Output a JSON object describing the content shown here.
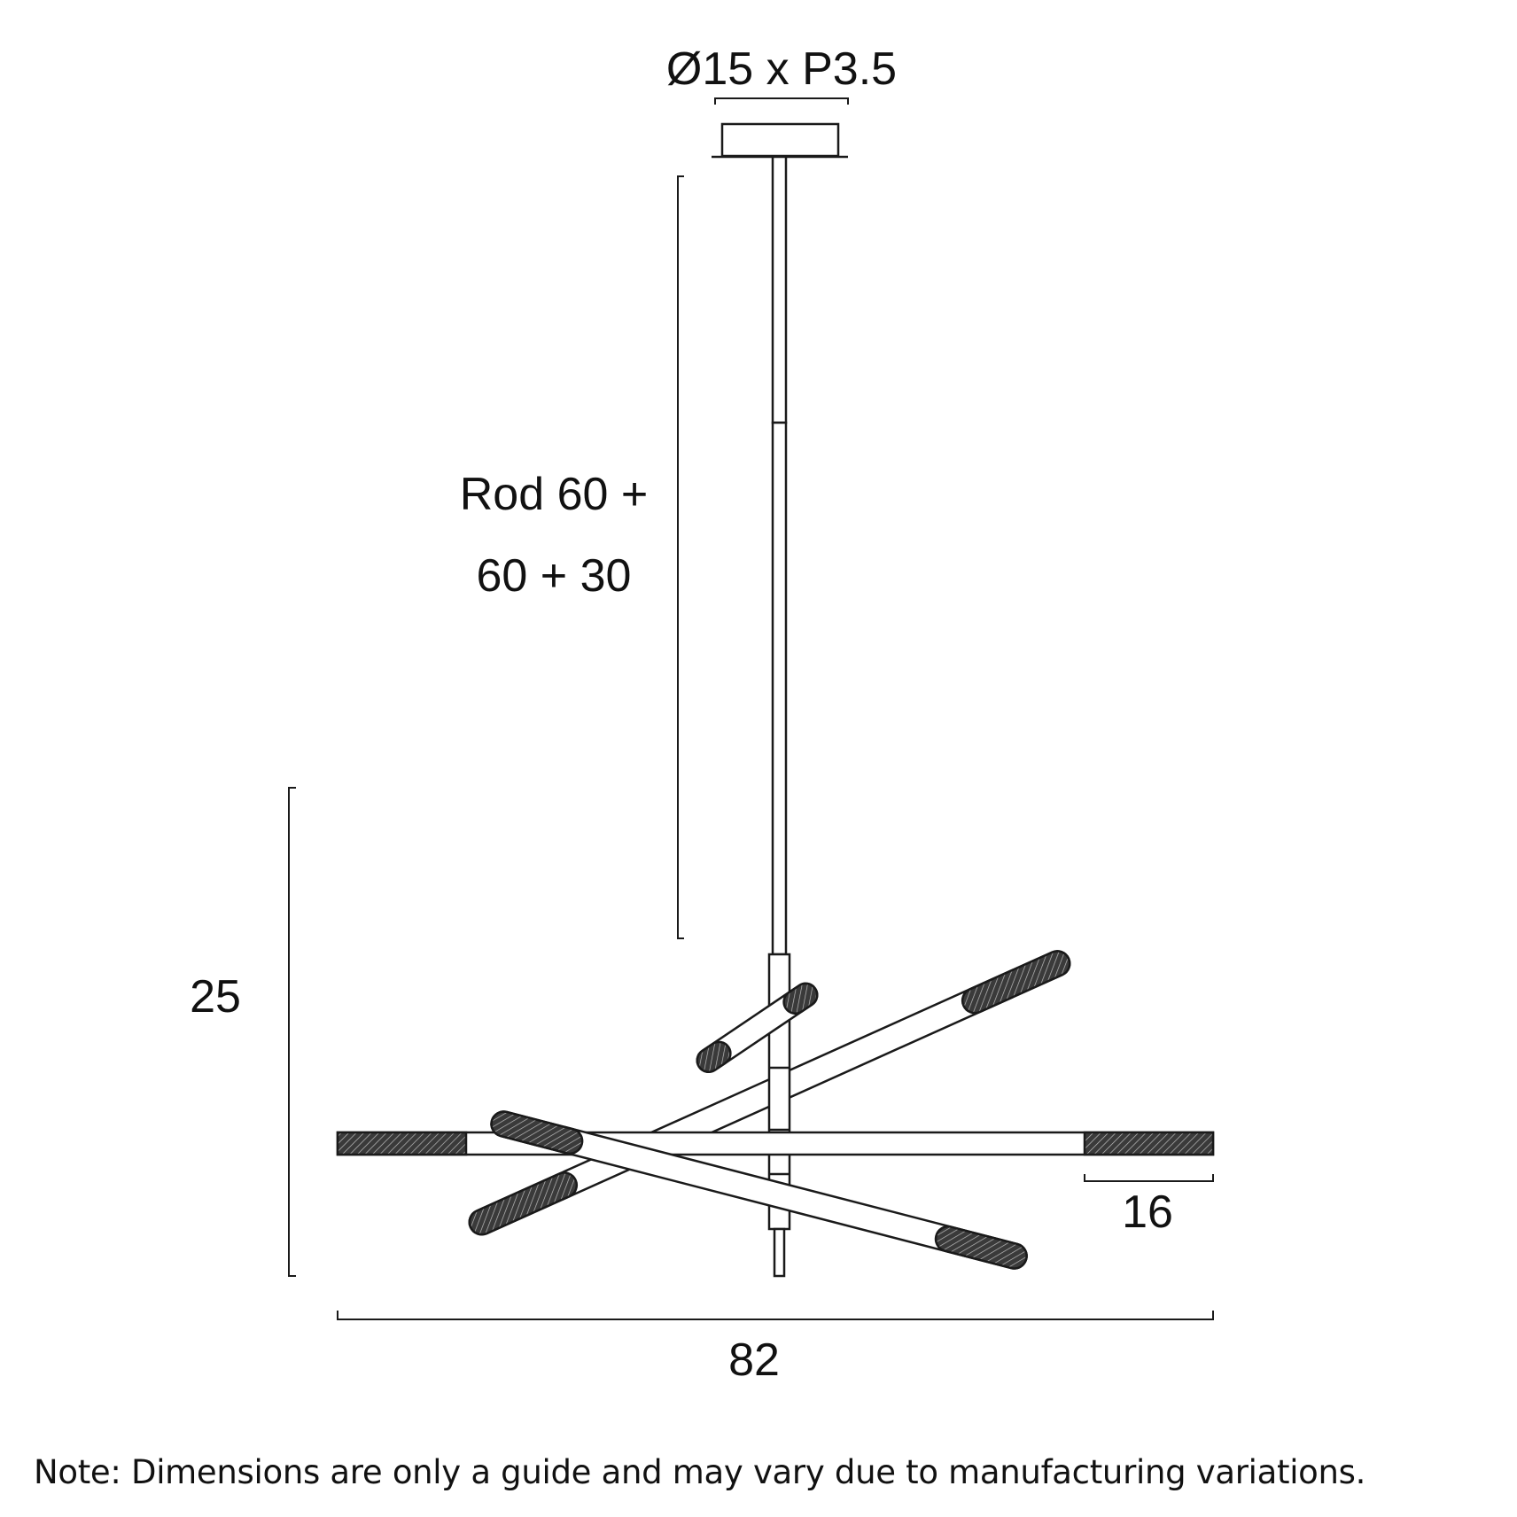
{
  "dimensions": {
    "canopy": "Ø15 x P3.5",
    "rod_line1": "Rod 60 +",
    "rod_line2": "60 + 30",
    "height": "25",
    "width": "82",
    "tube_segment": "16"
  },
  "note": "Note: Dimensions are only a guide and may vary due to manufacturing variations.",
  "colors": {
    "line": "#1a1a1a",
    "hatch": "#2b2b2b",
    "background": "#ffffff"
  }
}
